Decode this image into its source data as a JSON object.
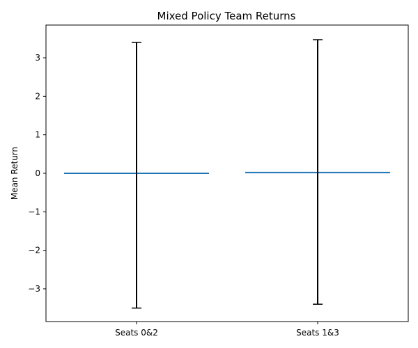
{
  "chart_data": {
    "type": "bar",
    "title": "Mixed Policy Team Returns",
    "xlabel": "",
    "ylabel": "Mean Return",
    "categories": [
      "Seats 0&2",
      "Seats 1&3"
    ],
    "values": [
      -0.03,
      0.02
    ],
    "errors": [
      {
        "low": -3.5,
        "high": 3.4
      },
      {
        "low": -3.4,
        "high": 3.47
      }
    ],
    "ylim": [
      -3.85,
      3.85
    ],
    "yticks": [
      -3,
      -2,
      -1,
      0,
      1,
      2,
      3
    ],
    "ytick_labels": [
      "−3",
      "−2",
      "−1",
      "0",
      "1",
      "2",
      "3"
    ],
    "grid": false,
    "legend": false,
    "colors": {
      "bar": "#1f77b4",
      "error": "#000000",
      "axes": "#000000"
    }
  }
}
